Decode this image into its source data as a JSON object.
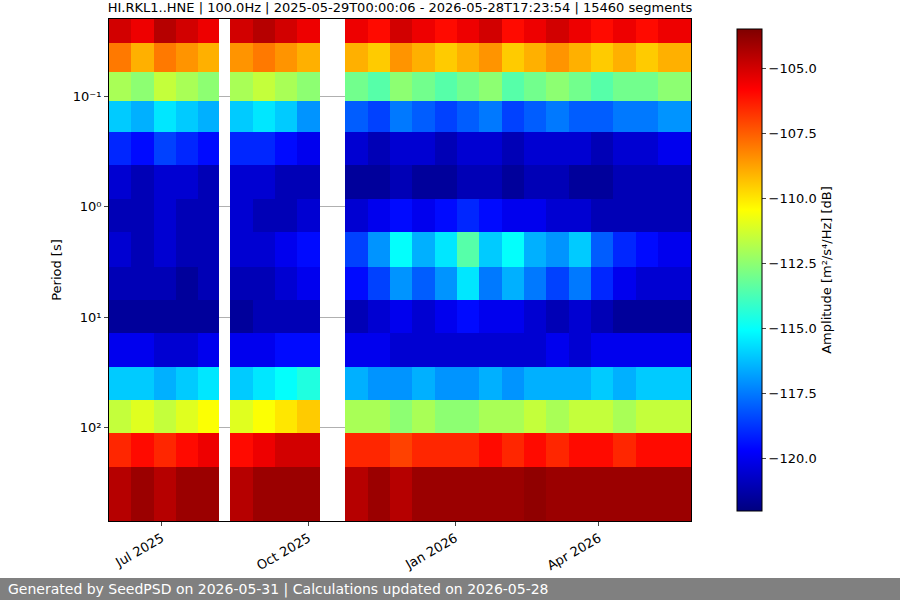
{
  "chart_data": {
    "type": "heatmap",
    "title": "HI.RKL1..HNE | 100.0Hz | 2025-05-29T00:00:06 - 2026-05-28T17:23:54 | 15460 segments",
    "ylabel": "Period [s]",
    "footer": "Generated by SeedPSD on 2026-05-31 | Calculations updated on 2026-05-28",
    "log": "y",
    "grid": "y",
    "xlim": [
      "2025-05-29T00:00:06",
      "2026-05-28T17:23:54"
    ],
    "xticks": [
      {
        "value": "2025-07-01",
        "label": "Jul 2025"
      },
      {
        "value": "2025-10-01",
        "label": "Oct 2025"
      },
      {
        "value": "2026-01-01",
        "label": "Jan 2026"
      },
      {
        "value": "2026-04-01",
        "label": "Apr 2026"
      }
    ],
    "ylim": [
      0.02,
      700
    ],
    "yticks": [
      {
        "value": 0.1,
        "label": "10⁻¹"
      },
      {
        "value": 1,
        "label": "10⁰"
      },
      {
        "value": 10,
        "label": "10¹"
      },
      {
        "value": 100,
        "label": "10²"
      }
    ],
    "x_bins": [
      "2025-05-29",
      "2025-06-12",
      "2025-06-26",
      "2025-07-10",
      "2025-07-24",
      "2025-08-06",
      "2025-08-13",
      "2025-08-27",
      "2025-09-10",
      "2025-09-24",
      "2025-10-08",
      "2025-10-24",
      "2025-11-07",
      "2025-11-21",
      "2025-12-05",
      "2025-12-19",
      "2026-01-02",
      "2026-01-16",
      "2026-01-30",
      "2026-02-13",
      "2026-02-27",
      "2026-03-13",
      "2026-03-27",
      "2026-04-10",
      "2026-04-24",
      "2026-05-08",
      "2026-05-28T17:23:54"
    ],
    "y_bins": [
      0.02,
      0.033,
      0.06,
      0.11,
      0.21,
      0.42,
      0.85,
      1.7,
      3.5,
      7,
      14,
      28,
      56,
      112,
      225,
      700
    ],
    "cells": [
      [
        -105,
        -105.5,
        -104.5,
        -105,
        -105.5,
        null,
        -105,
        -104.5,
        -105,
        -105.5,
        null,
        -105.5,
        -106,
        -105,
        -105.5,
        -106,
        -105.5,
        -105,
        -106,
        -105.5,
        -105,
        -105.5,
        -106,
        -105.5,
        -106,
        -105.5
      ],
      [
        -108,
        -109,
        -108,
        -108.5,
        -109,
        null,
        -108.5,
        -108,
        -108.5,
        -109,
        null,
        -109,
        -109.5,
        -108.5,
        -109,
        -109.5,
        -109,
        -108.5,
        -109.5,
        -109,
        -108.5,
        -109,
        -109.5,
        -109,
        -109.5,
        -109
      ],
      [
        -112,
        -112.5,
        -111.5,
        -112,
        -112.5,
        null,
        -112,
        -111.5,
        -112,
        -112.5,
        null,
        -113,
        -113.5,
        -112.5,
        -113,
        -113.5,
        -113,
        -112.5,
        -113.5,
        -113,
        -112.5,
        -113,
        -113.5,
        -113,
        -113,
        -112.5
      ],
      [
        -116,
        -116.5,
        -115.5,
        -116,
        -116.5,
        null,
        -116,
        -115.5,
        -116,
        -117,
        null,
        -118,
        -118.5,
        -117.5,
        -118,
        -118.5,
        -118,
        -117.5,
        -118.5,
        -118,
        -117.5,
        -118,
        -118,
        -117.5,
        -117.5,
        -117
      ],
      [
        -119,
        -119.5,
        -118.5,
        -119,
        -119.5,
        null,
        -119,
        -119,
        -119.5,
        -120,
        null,
        -120.5,
        -121,
        -120.5,
        -120.5,
        -121,
        -120.5,
        -120.5,
        -121,
        -120.5,
        -120.5,
        -120.5,
        -121,
        -120.5,
        -120.5,
        -120
      ],
      [
        -120.5,
        -121,
        -120.5,
        -120.5,
        -121,
        null,
        -120.5,
        -120.5,
        -121,
        -121,
        null,
        -121.5,
        -121.5,
        -121,
        -121.5,
        -121.5,
        -121,
        -121,
        -121.5,
        -121,
        -121,
        -121.5,
        -121.5,
        -121,
        -121,
        -121
      ],
      [
        -121,
        -121,
        -120.5,
        -121,
        -121,
        null,
        -120.5,
        -121,
        -121,
        -120.5,
        null,
        -120.5,
        -120,
        -119.5,
        -120,
        -119.5,
        -119,
        -119.5,
        -120,
        -120,
        -120.5,
        -120.5,
        -121,
        -121,
        -121,
        -121
      ],
      [
        -120.5,
        -121,
        -120.5,
        -121,
        -121,
        null,
        -120.5,
        -120.5,
        -120,
        -119.5,
        null,
        -118.5,
        -117,
        -115,
        -116.5,
        -115.5,
        -113.5,
        -116,
        -115,
        -116.5,
        -117,
        -116,
        -118,
        -119,
        -119.5,
        -120
      ],
      [
        -121,
        -121,
        -121,
        -121.5,
        -121,
        null,
        -121,
        -121,
        -120.5,
        -120,
        null,
        -119.5,
        -118.5,
        -117,
        -118,
        -117,
        -115.5,
        -117.5,
        -116.5,
        -117.5,
        -118.5,
        -117.5,
        -119,
        -120,
        -120.5,
        -120.5
      ],
      [
        -121.5,
        -121.5,
        -121.5,
        -121.5,
        -121.5,
        null,
        -121.5,
        -121,
        -121,
        -121,
        null,
        -121,
        -120.5,
        -120,
        -120.5,
        -120,
        -119.5,
        -120,
        -120,
        -120.5,
        -121,
        -120.5,
        -121,
        -121.5,
        -121.5,
        -121.5
      ],
      [
        -120,
        -120,
        -120.5,
        -120.5,
        -120,
        null,
        -120,
        -120,
        -119.5,
        -119.5,
        null,
        -120,
        -120,
        -120.5,
        -120.5,
        -120.5,
        -120.5,
        -120.5,
        -120.5,
        -120.5,
        -120,
        -120.5,
        -120,
        -120,
        -120,
        -120
      ],
      [
        -116,
        -116,
        -116.5,
        -116,
        -115.5,
        null,
        -116,
        -115.5,
        -115,
        -114.5,
        null,
        -116.5,
        -117,
        -117,
        -116.5,
        -117,
        -117,
        -116.5,
        -117,
        -116.5,
        -116.5,
        -116.5,
        -116,
        -116.5,
        -116,
        -116
      ],
      [
        -111.5,
        -111,
        -111.5,
        -111,
        -110.5,
        null,
        -111,
        -110.5,
        -110,
        -109.5,
        null,
        -112,
        -112,
        -112.5,
        -112,
        -112.5,
        -112.5,
        -112,
        -112,
        -111.5,
        -112,
        -111.5,
        -111.5,
        -112,
        -111.5,
        -111.5
      ],
      [
        -106.5,
        -106,
        -106.5,
        -106,
        -105.5,
        null,
        -106,
        -105.5,
        -105,
        -105,
        null,
        -106.5,
        -106.5,
        -107,
        -106.5,
        -106.5,
        -106.5,
        -106,
        -106.5,
        -106,
        -106.5,
        -106,
        -106,
        -106.5,
        -106,
        -106
      ],
      [
        -104.5,
        -104,
        -104.5,
        -104,
        -104,
        null,
        -104.5,
        -104,
        -104,
        -104,
        null,
        -104.5,
        -104,
        -104.5,
        -104,
        -104,
        -104,
        -104,
        -104,
        -103.8,
        -104,
        -104,
        -104,
        -104,
        -104,
        -104
      ]
    ],
    "colorbar": {
      "title": "Amplitude [m²/s⁴/Hz] [dB]",
      "range": [
        -122,
        -103.5
      ],
      "ticks": [
        {
          "value": -120,
          "label": "−120.0"
        },
        {
          "value": -117.5,
          "label": "−117.5"
        },
        {
          "value": -115,
          "label": "−115.0"
        },
        {
          "value": -112.5,
          "label": "−112.5"
        },
        {
          "value": -110,
          "label": "−110.0"
        },
        {
          "value": -107.5,
          "label": "−107.5"
        },
        {
          "value": -105,
          "label": "−105.0"
        }
      ]
    }
  }
}
